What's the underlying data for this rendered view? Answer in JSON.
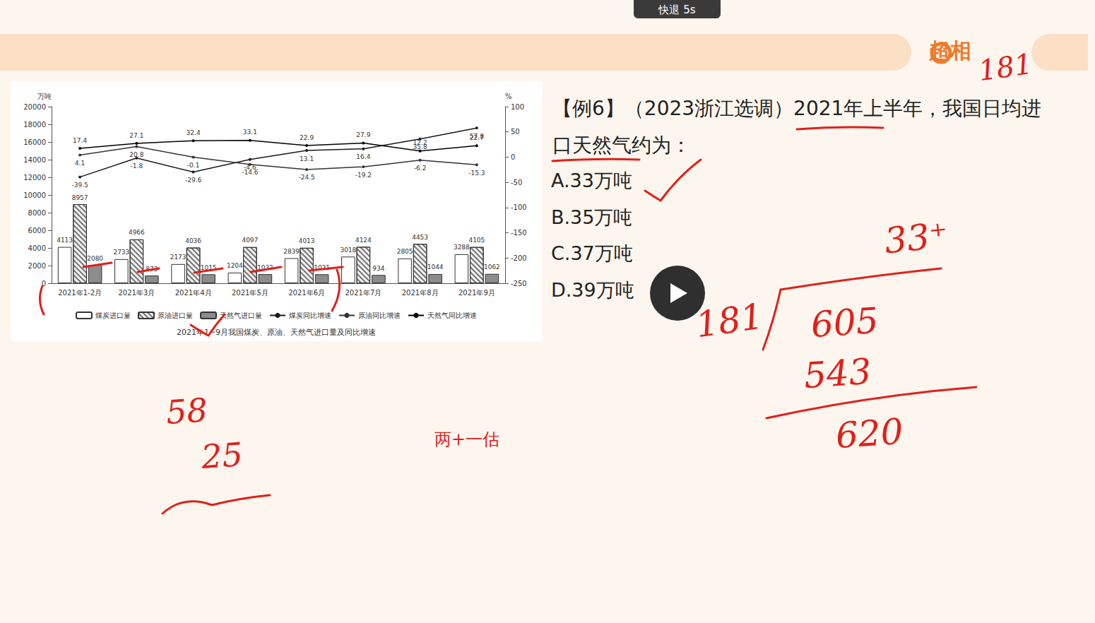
{
  "chart_data": {
    "type": "bar",
    "title": "2021年1~9月我国煤炭、原油、天然气进口量及同比增速",
    "y_label": "万吨",
    "y2_label": "%",
    "categories": [
      "2021年1-2月",
      "2021年3月",
      "2021年4月",
      "2021年5月",
      "2021年6月",
      "2021年7月",
      "2021年8月",
      "2021年9月"
    ],
    "series": [
      {
        "name": "煤炭进口量",
        "type": "bar",
        "color": "#ffffff",
        "values": [
          4113,
          2733,
          2173,
          1204,
          2839,
          3018,
          2805,
          3288
        ]
      },
      {
        "name": "原油进口量",
        "type": "bar",
        "color": "#f2f2f2",
        "values": [
          8957,
          4966,
          4036,
          4097,
          4013,
          4124,
          4453,
          4105
        ]
      },
      {
        "name": "天然气进口量",
        "type": "bar",
        "color": "#8c8c8c",
        "values": [
          2080,
          873,
          1015,
          1032,
          1021,
          934,
          1044,
          1062
        ]
      },
      {
        "name": "煤炭同比增速",
        "type": "line",
        "axis": "y2",
        "color": "#1a1a1a",
        "marker": "circle",
        "values": [
          -39.5,
          -1.8,
          -29.6,
          -4.6,
          13.1,
          16.4,
          35.8,
          57.8
        ]
      },
      {
        "name": "原油同比增速",
        "type": "line",
        "axis": "y2",
        "color": "#333333",
        "marker": "circle",
        "values": [
          4.1,
          20.8,
          -0.1,
          -14.6,
          -24.5,
          -19.2,
          -6.2,
          -15.3
        ]
      },
      {
        "name": "天然气同比增速",
        "type": "line",
        "axis": "y2",
        "color": "#000000",
        "marker": "circle",
        "values": [
          17.4,
          27.1,
          32.4,
          33.1,
          22.9,
          27.9,
          12.2,
          22.7
        ]
      }
    ],
    "ylim": [
      0,
      20000
    ],
    "yticks": [
      0,
      2000,
      4000,
      6000,
      8000,
      10000,
      12000,
      14000,
      16000,
      18000,
      20000
    ],
    "y2lim": [
      -250,
      100
    ],
    "y2ticks": [
      -250,
      -200,
      -150,
      -100,
      -50,
      0,
      50,
      100
    ],
    "data_labels": true,
    "legend": "bottom",
    "grid": false
  },
  "slide": {
    "overlay": "快退 5s",
    "brand": "超相",
    "question": "【例6】（2023浙江选调）2021年上半年，我国日均进口天然气约为：",
    "options": [
      "A.33万吨",
      "B.35万吨",
      "C.37万吨",
      "D.39万吨"
    ],
    "caption": "两+一估",
    "handwriting": {
      "corner": "181",
      "quotient": "33⁺",
      "divisor": "181",
      "dividend": "605",
      "product": "543",
      "remainder": "620",
      "left_top": "58",
      "left_bottom": "25"
    }
  }
}
